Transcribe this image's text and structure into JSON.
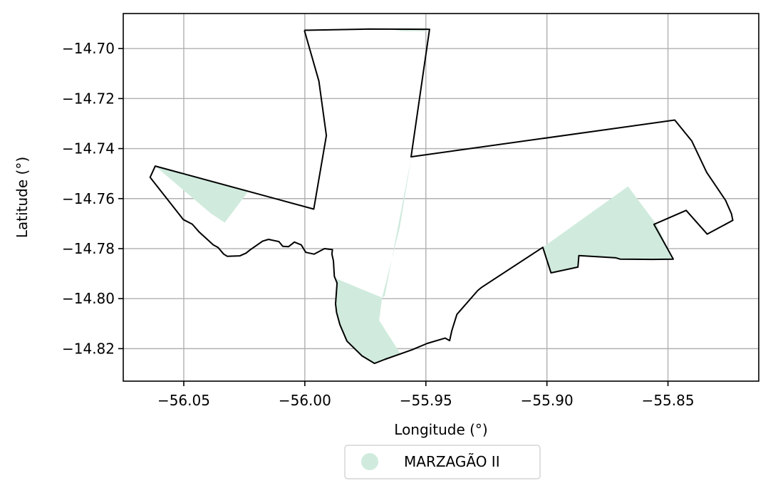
{
  "chart_data": {
    "type": "map",
    "xlabel": "Longitude (°)",
    "ylabel": "Latitude (°)",
    "xlim": [
      -56.075,
      -55.8125
    ],
    "ylim": [
      -14.833,
      -14.686
    ],
    "xticks": [
      -56.05,
      -56.0,
      -55.95,
      -55.9,
      -55.85
    ],
    "xtick_labels": [
      "−56.05",
      "−56.00",
      "−55.95",
      "−55.90",
      "−55.85"
    ],
    "yticks": [
      -14.7,
      -14.72,
      -14.74,
      -14.76,
      -14.78,
      -14.8,
      -14.82
    ],
    "ytick_labels": [
      "−14.70",
      "−14.72",
      "−14.74",
      "−14.76",
      "−14.78",
      "−14.80",
      "−14.82"
    ],
    "grid": true,
    "legend": {
      "placement": "below",
      "entries": [
        {
          "label": "MARZAGÃO II",
          "color": "#d0ebdd"
        }
      ]
    },
    "fill_color": "#d0ebdd",
    "boundary_color": "#000000",
    "boundary": [
      [
        -56.0002,
        -14.6927
      ],
      [
        -55.9735,
        -14.6922
      ],
      [
        -55.9485,
        -14.6923
      ],
      [
        -55.9561,
        -14.7433
      ],
      [
        -55.8472,
        -14.7286
      ],
      [
        -55.8402,
        -14.7369
      ],
      [
        -55.834,
        -14.7495
      ],
      [
        -55.8262,
        -14.7607
      ],
      [
        -55.8238,
        -14.766
      ],
      [
        -55.8232,
        -14.7687
      ],
      [
        -55.8338,
        -14.7742
      ],
      [
        -55.8425,
        -14.7647
      ],
      [
        -55.8558,
        -14.7703
      ],
      [
        -55.8478,
        -14.7842
      ],
      [
        -55.8564,
        -14.7843
      ],
      [
        -55.8698,
        -14.7842
      ],
      [
        -55.8715,
        -14.7837
      ],
      [
        -55.8868,
        -14.7828
      ],
      [
        -55.8872,
        -14.7874
      ],
      [
        -55.8983,
        -14.7897
      ],
      [
        -55.9017,
        -14.7795
      ],
      [
        -55.927,
        -14.7955
      ],
      [
        -55.9286,
        -14.7968
      ],
      [
        -55.9372,
        -14.8063
      ],
      [
        -55.9393,
        -14.8129
      ],
      [
        -55.9402,
        -14.8168
      ],
      [
        -55.942,
        -14.8158
      ],
      [
        -55.9494,
        -14.8179
      ],
      [
        -55.9558,
        -14.8205
      ],
      [
        -55.967,
        -14.8243
      ],
      [
        -55.9712,
        -14.8259
      ],
      [
        -55.9764,
        -14.8229
      ],
      [
        -55.9826,
        -14.817
      ],
      [
        -55.9855,
        -14.8104
      ],
      [
        -55.9869,
        -14.8055
      ],
      [
        -55.9873,
        -14.8021
      ],
      [
        -55.9867,
        -14.7938
      ],
      [
        -55.9878,
        -14.7911
      ],
      [
        -55.9882,
        -14.7849
      ],
      [
        -55.9888,
        -14.7822
      ],
      [
        -55.9886,
        -14.7804
      ],
      [
        -55.9919,
        -14.78
      ],
      [
        -55.9962,
        -14.7822
      ],
      [
        -55.9996,
        -14.7815
      ],
      [
        -56.0015,
        -14.7785
      ],
      [
        -56.0043,
        -14.7774
      ],
      [
        -56.0067,
        -14.7792
      ],
      [
        -56.0091,
        -14.7791
      ],
      [
        -56.0107,
        -14.7772
      ],
      [
        -56.015,
        -14.7763
      ],
      [
        -56.0174,
        -14.777
      ],
      [
        -56.0226,
        -14.7805
      ],
      [
        -56.0243,
        -14.7818
      ],
      [
        -56.0268,
        -14.7829
      ],
      [
        -56.032,
        -14.7831
      ],
      [
        -56.0335,
        -14.7822
      ],
      [
        -56.0359,
        -14.7795
      ],
      [
        -56.0378,
        -14.7785
      ],
      [
        -56.0436,
        -14.7734
      ],
      [
        -56.0465,
        -14.7702
      ],
      [
        -56.0502,
        -14.7684
      ],
      [
        -56.0639,
        -14.7515
      ],
      [
        -56.0618,
        -14.747
      ],
      [
        -55.9963,
        -14.7642
      ],
      [
        -55.9911,
        -14.7348
      ],
      [
        -55.9942,
        -14.713
      ],
      [
        -56.0002,
        -14.6927
      ]
    ],
    "fill_regions": [
      [
        [
          -56.0618,
          -14.747
        ],
        [
          -56.0233,
          -14.757
        ],
        [
          -56.0331,
          -14.7696
        ],
        [
          -56.039,
          -14.7658
        ]
      ],
      [
        [
          -55.987,
          -14.792
        ],
        [
          -55.9681,
          -14.7996
        ],
        [
          -55.9693,
          -14.8087
        ],
        [
          -55.9606,
          -14.8219
        ],
        [
          -55.967,
          -14.8243
        ],
        [
          -55.9712,
          -14.8259
        ],
        [
          -55.9764,
          -14.8229
        ],
        [
          -55.9826,
          -14.817
        ],
        [
          -55.9855,
          -14.8104
        ],
        [
          -55.9869,
          -14.8055
        ],
        [
          -55.9873,
          -14.8021
        ],
        [
          -55.9867,
          -14.7938
        ]
      ],
      [
        [
          -55.9017,
          -14.7795
        ],
        [
          -55.8665,
          -14.7551
        ],
        [
          -55.8548,
          -14.7703
        ],
        [
          -55.8478,
          -14.7842
        ],
        [
          -55.8564,
          -14.7843
        ],
        [
          -55.8698,
          -14.7842
        ],
        [
          -55.8715,
          -14.7837
        ],
        [
          -55.8868,
          -14.7828
        ],
        [
          -55.8872,
          -14.7874
        ],
        [
          -55.8983,
          -14.7897
        ]
      ],
      [
        [
          -55.965,
          -14.6923
        ],
        [
          -55.9485,
          -14.6923
        ],
        [
          -55.95,
          -14.693
        ],
        [
          -55.96,
          -14.693
        ]
      ],
      [
        [
          -55.956,
          -14.7433
        ],
        [
          -55.9608,
          -14.7716
        ],
        [
          -55.9681,
          -14.7996
        ],
        [
          -55.967,
          -14.799
        ]
      ]
    ]
  }
}
